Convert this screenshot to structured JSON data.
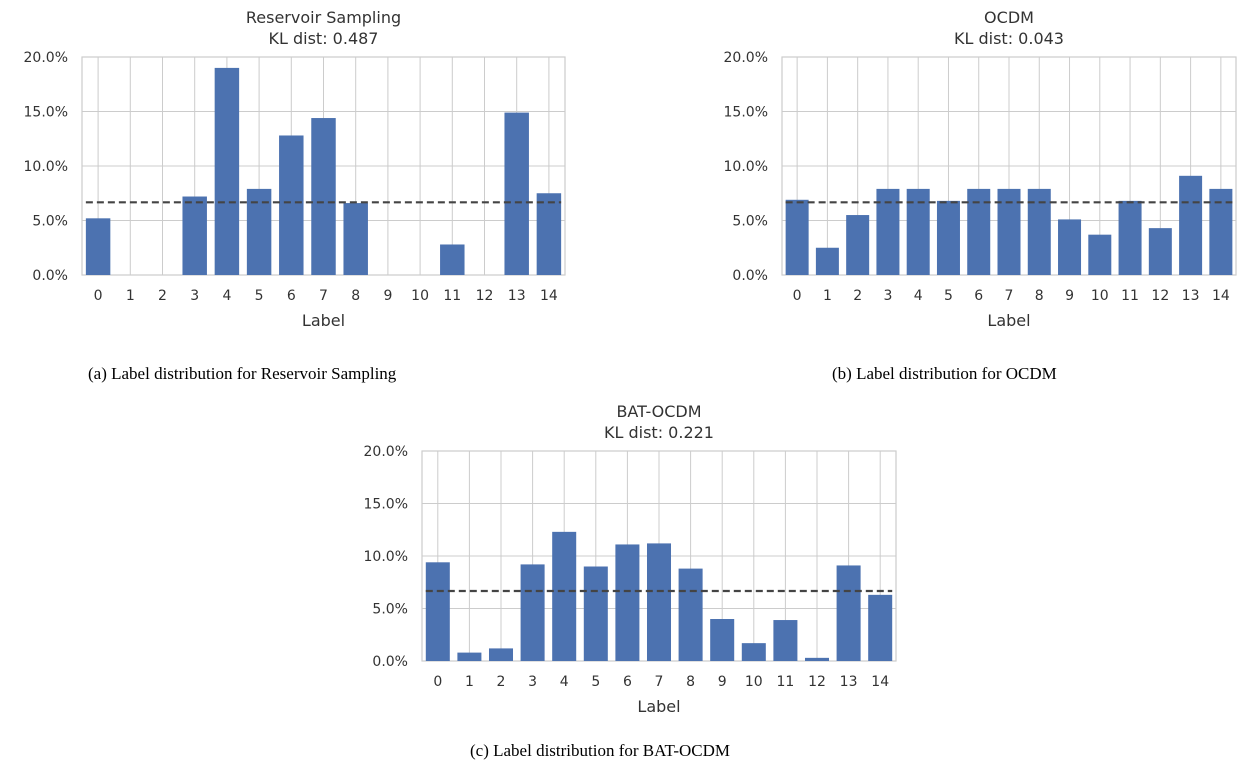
{
  "figures": [
    {
      "caption": "(a) Label distribution for Reservoir Sampling",
      "chart_data": {
        "type": "bar",
        "title": "Reservoir Sampling",
        "subtitle": "KL dist: 0.487",
        "xlabel": "Label",
        "ylabel": "",
        "categories": [
          "0",
          "1",
          "2",
          "3",
          "4",
          "5",
          "6",
          "7",
          "8",
          "9",
          "10",
          "11",
          "12",
          "13",
          "14"
        ],
        "values": [
          5.2,
          0.0,
          0.0,
          7.2,
          19.0,
          7.9,
          12.8,
          14.4,
          6.6,
          0.0,
          0.0,
          2.8,
          0.0,
          14.9,
          7.5
        ],
        "reference_line": 6.67,
        "ylim": [
          0,
          20
        ],
        "yticks": [
          "0.0%",
          "5.0%",
          "10.0%",
          "15.0%",
          "20.0%"
        ],
        "grid": true,
        "bar_color": "#4c72b0"
      }
    },
    {
      "caption": "(b) Label distribution for OCDM",
      "chart_data": {
        "type": "bar",
        "title": "OCDM",
        "subtitle": "KL dist: 0.043",
        "xlabel": "Label",
        "ylabel": "",
        "categories": [
          "0",
          "1",
          "2",
          "3",
          "4",
          "5",
          "6",
          "7",
          "8",
          "9",
          "10",
          "11",
          "12",
          "13",
          "14"
        ],
        "values": [
          6.9,
          2.5,
          5.5,
          7.9,
          7.9,
          6.8,
          7.9,
          7.9,
          7.9,
          5.1,
          3.7,
          6.8,
          4.3,
          9.1,
          7.9
        ],
        "reference_line": 6.67,
        "ylim": [
          0,
          20
        ],
        "yticks": [
          "0.0%",
          "5.0%",
          "10.0%",
          "15.0%",
          "20.0%"
        ],
        "grid": true,
        "bar_color": "#4c72b0"
      }
    },
    {
      "caption": "(c) Label distribution for BAT-OCDM",
      "chart_data": {
        "type": "bar",
        "title": "BAT-OCDM",
        "subtitle": "KL dist: 0.221",
        "xlabel": "Label",
        "ylabel": "",
        "categories": [
          "0",
          "1",
          "2",
          "3",
          "4",
          "5",
          "6",
          "7",
          "8",
          "9",
          "10",
          "11",
          "12",
          "13",
          "14"
        ],
        "values": [
          9.4,
          0.8,
          1.2,
          9.2,
          12.3,
          9.0,
          11.1,
          11.2,
          8.8,
          4.0,
          1.7,
          3.9,
          0.3,
          9.1,
          6.3
        ],
        "reference_line": 6.67,
        "ylim": [
          0,
          20
        ],
        "yticks": [
          "0.0%",
          "5.0%",
          "10.0%",
          "15.0%",
          "20.0%"
        ],
        "grid": true,
        "bar_color": "#4c72b0"
      }
    }
  ]
}
